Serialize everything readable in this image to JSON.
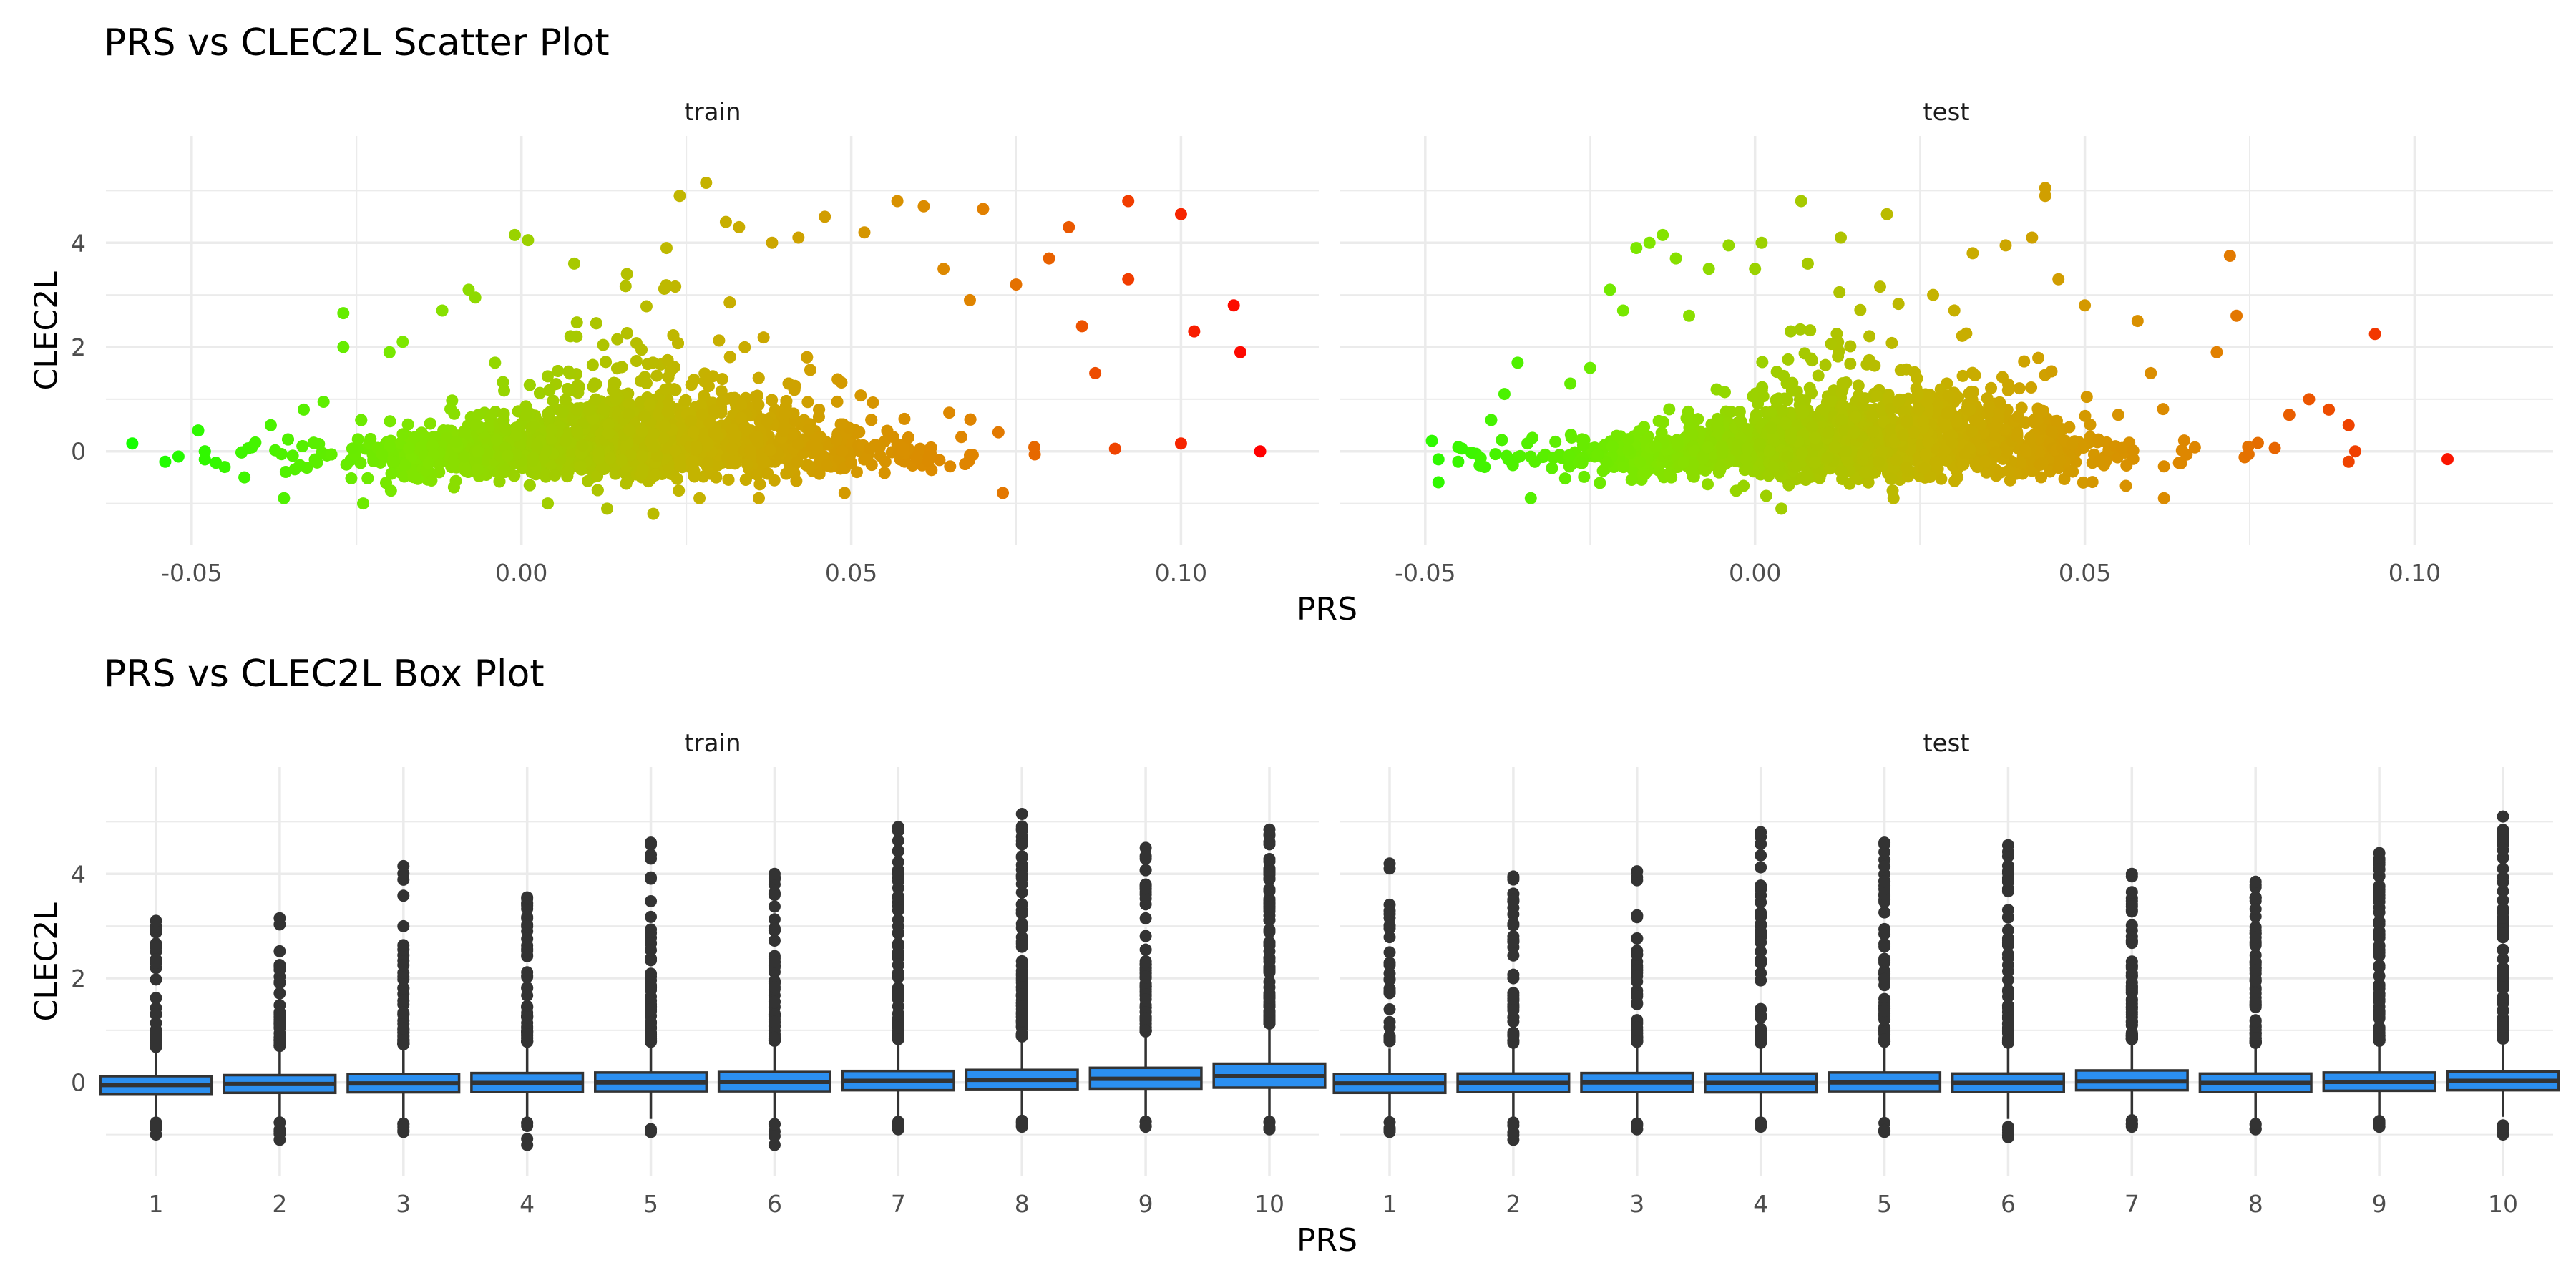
{
  "titles": {
    "scatter": "PRS vs CLEC2L Scatter Plot",
    "box": "PRS vs CLEC2L Box Plot"
  },
  "labels": {
    "x": "PRS",
    "y": "CLEC2L"
  },
  "colors": {
    "grid": "#ebebeb",
    "box_fill": "#2b8ff0",
    "box_line": "#333333",
    "outlier": "#333333",
    "gradient": [
      "#12ff00",
      "#7fe600",
      "#c4b400",
      "#e08300",
      "#ff0000"
    ]
  },
  "chart_data": [
    {
      "type": "scatter",
      "title": "PRS vs CLEC2L Scatter Plot",
      "xlabel": "PRS",
      "ylabel": "CLEC2L",
      "xlim": [
        -0.063,
        0.121
      ],
      "ylim": [
        -1.5,
        5.5
      ],
      "xticks": [
        "-0.05",
        "0.00",
        "0.05",
        "0.10"
      ],
      "xtick_values": [
        -0.05,
        0,
        0.05,
        0.1
      ],
      "yticks": [
        "0",
        "2",
        "4"
      ],
      "ytick_values": [
        0,
        2,
        4
      ],
      "grid": true,
      "color_scale": "PRS value, green (low) to red (high)",
      "panels": [
        {
          "name": "train",
          "points": [
            [
              -0.059,
              0.15
            ],
            [
              -0.054,
              -0.2
            ],
            [
              -0.052,
              -0.1
            ],
            [
              -0.049,
              0.4
            ],
            [
              -0.045,
              -0.3
            ],
            [
              -0.042,
              -0.5
            ],
            [
              -0.038,
              0.5
            ],
            [
              -0.036,
              -0.9
            ],
            [
              -0.033,
              0.8
            ],
            [
              -0.03,
              0.95
            ],
            [
              -0.027,
              2.0
            ],
            [
              -0.027,
              2.65
            ],
            [
              -0.024,
              -1.0
            ],
            [
              -0.02,
              1.9
            ],
            [
              -0.018,
              2.1
            ],
            [
              -0.012,
              2.7
            ],
            [
              -0.008,
              3.1
            ],
            [
              -0.007,
              2.95
            ],
            [
              -0.004,
              1.7
            ],
            [
              -0.001,
              4.15
            ],
            [
              0.001,
              4.05
            ],
            [
              0.004,
              -1.0
            ],
            [
              0.008,
              3.6
            ],
            [
              0.013,
              -1.1
            ],
            [
              0.016,
              3.4
            ],
            [
              0.02,
              -1.2
            ],
            [
              0.022,
              3.9
            ],
            [
              0.024,
              4.9
            ],
            [
              0.027,
              -0.9
            ],
            [
              0.028,
              5.15
            ],
            [
              0.031,
              4.4
            ],
            [
              0.033,
              4.3
            ],
            [
              0.036,
              -0.9
            ],
            [
              0.038,
              4.0
            ],
            [
              0.042,
              4.1
            ],
            [
              0.046,
              4.5
            ],
            [
              0.049,
              -0.8
            ],
            [
              0.052,
              4.2
            ],
            [
              0.057,
              4.8
            ],
            [
              0.061,
              4.7
            ],
            [
              0.064,
              3.5
            ],
            [
              0.068,
              2.9
            ],
            [
              0.07,
              4.65
            ],
            [
              0.073,
              -0.8
            ],
            [
              0.075,
              3.2
            ],
            [
              0.08,
              3.7
            ],
            [
              0.083,
              4.3
            ],
            [
              0.085,
              2.4
            ],
            [
              0.087,
              1.5
            ],
            [
              0.09,
              0.05
            ],
            [
              0.092,
              4.8
            ],
            [
              0.092,
              3.3
            ],
            [
              0.1,
              0.15
            ],
            [
              0.1,
              4.55
            ],
            [
              0.102,
              2.3
            ],
            [
              0.108,
              2.8
            ],
            [
              0.109,
              1.9
            ],
            [
              0.112,
              0.0
            ]
          ],
          "cloud": {
            "mean": 0.015,
            "sd": 0.019,
            "n": 2600
          }
        },
        {
          "name": "test",
          "points": [
            [
              -0.049,
              0.2
            ],
            [
              -0.045,
              -0.2
            ],
            [
              -0.041,
              -0.3
            ],
            [
              -0.04,
              0.6
            ],
            [
              -0.038,
              1.1
            ],
            [
              -0.036,
              1.7
            ],
            [
              -0.034,
              -0.9
            ],
            [
              -0.028,
              1.3
            ],
            [
              -0.025,
              1.6
            ],
            [
              -0.022,
              3.1
            ],
            [
              -0.02,
              2.7
            ],
            [
              -0.018,
              3.9
            ],
            [
              -0.016,
              4.0
            ],
            [
              -0.014,
              4.15
            ],
            [
              -0.012,
              3.7
            ],
            [
              -0.01,
              2.6
            ],
            [
              -0.007,
              3.5
            ],
            [
              -0.004,
              3.95
            ],
            [
              0.0,
              3.5
            ],
            [
              0.001,
              4.0
            ],
            [
              0.004,
              -1.1
            ],
            [
              0.007,
              4.8
            ],
            [
              0.008,
              3.6
            ],
            [
              0.013,
              4.1
            ],
            [
              0.02,
              4.55
            ],
            [
              0.021,
              -0.9
            ],
            [
              0.027,
              3.0
            ],
            [
              0.033,
              3.8
            ],
            [
              0.038,
              3.95
            ],
            [
              0.042,
              4.1
            ],
            [
              0.044,
              4.9
            ],
            [
              0.044,
              5.05
            ],
            [
              0.046,
              3.3
            ],
            [
              0.05,
              2.8
            ],
            [
              0.058,
              2.5
            ],
            [
              0.06,
              1.5
            ],
            [
              0.062,
              -0.9
            ],
            [
              0.07,
              1.9
            ],
            [
              0.072,
              3.75
            ],
            [
              0.073,
              2.6
            ],
            [
              0.081,
              0.7
            ],
            [
              0.084,
              1.0
            ],
            [
              0.087,
              0.8
            ],
            [
              0.09,
              0.5
            ],
            [
              0.091,
              0.0
            ],
            [
              0.09,
              -0.2
            ],
            [
              0.094,
              2.25
            ],
            [
              0.105,
              -0.15
            ]
          ],
          "cloud": {
            "mean": 0.012,
            "sd": 0.019,
            "n": 1800
          }
        }
      ]
    },
    {
      "type": "box",
      "title": "PRS vs CLEC2L Box Plot",
      "xlabel": "PRS",
      "ylabel": "CLEC2L",
      "categories": [
        "1",
        "2",
        "3",
        "4",
        "5",
        "6",
        "7",
        "8",
        "9",
        "10"
      ],
      "ylim": [
        -1.5,
        5.5
      ],
      "yticks": [
        "0",
        "2",
        "4"
      ],
      "ytick_values": [
        0,
        2,
        4
      ],
      "grid": true,
      "panels": [
        {
          "name": "train",
          "boxes": [
            {
              "q1": -0.22,
              "median": -0.05,
              "q3": 0.12,
              "lo": -0.7,
              "hi": 0.6,
              "out_min": -1.0,
              "out_max": 3.1
            },
            {
              "q1": -0.2,
              "median": -0.03,
              "q3": 0.14,
              "lo": -0.7,
              "hi": 0.62,
              "out_min": -1.1,
              "out_max": 3.15
            },
            {
              "q1": -0.19,
              "median": -0.02,
              "q3": 0.16,
              "lo": -0.68,
              "hi": 0.65,
              "out_min": -0.95,
              "out_max": 4.15
            },
            {
              "q1": -0.18,
              "median": -0.01,
              "q3": 0.18,
              "lo": -0.7,
              "hi": 0.7,
              "out_min": -1.2,
              "out_max": 3.55
            },
            {
              "q1": -0.17,
              "median": 0.0,
              "q3": 0.19,
              "lo": -0.7,
              "hi": 0.7,
              "out_min": -0.95,
              "out_max": 4.6
            },
            {
              "q1": -0.17,
              "median": 0.01,
              "q3": 0.2,
              "lo": -0.7,
              "hi": 0.72,
              "out_min": -1.2,
              "out_max": 4.0
            },
            {
              "q1": -0.15,
              "median": 0.03,
              "q3": 0.22,
              "lo": -0.68,
              "hi": 0.75,
              "out_min": -0.9,
              "out_max": 4.9
            },
            {
              "q1": -0.13,
              "median": 0.05,
              "q3": 0.24,
              "lo": -0.67,
              "hi": 0.8,
              "out_min": -0.85,
              "out_max": 5.15
            },
            {
              "q1": -0.12,
              "median": 0.07,
              "q3": 0.28,
              "lo": -0.65,
              "hi": 0.9,
              "out_min": -0.85,
              "out_max": 4.5
            },
            {
              "q1": -0.1,
              "median": 0.12,
              "q3": 0.36,
              "lo": -0.65,
              "hi": 1.05,
              "out_min": -0.9,
              "out_max": 4.85
            }
          ]
        },
        {
          "name": "test",
          "boxes": [
            {
              "q1": -0.2,
              "median": -0.02,
              "q3": 0.16,
              "lo": -0.68,
              "hi": 0.65,
              "out_min": -0.95,
              "out_max": 4.2
            },
            {
              "q1": -0.18,
              "median": -0.01,
              "q3": 0.17,
              "lo": -0.7,
              "hi": 0.68,
              "out_min": -1.1,
              "out_max": 3.95
            },
            {
              "q1": -0.18,
              "median": 0.0,
              "q3": 0.18,
              "lo": -0.68,
              "hi": 0.7,
              "out_min": -0.9,
              "out_max": 4.05
            },
            {
              "q1": -0.19,
              "median": -0.01,
              "q3": 0.17,
              "lo": -0.7,
              "hi": 0.68,
              "out_min": -0.85,
              "out_max": 4.8
            },
            {
              "q1": -0.17,
              "median": 0.0,
              "q3": 0.19,
              "lo": -0.7,
              "hi": 0.7,
              "out_min": -0.95,
              "out_max": 4.6
            },
            {
              "q1": -0.18,
              "median": -0.01,
              "q3": 0.17,
              "lo": -0.7,
              "hi": 0.68,
              "out_min": -1.05,
              "out_max": 4.55
            },
            {
              "q1": -0.15,
              "median": 0.02,
              "q3": 0.23,
              "lo": -0.66,
              "hi": 0.75,
              "out_min": -0.85,
              "out_max": 4.0
            },
            {
              "q1": -0.18,
              "median": -0.01,
              "q3": 0.17,
              "lo": -0.7,
              "hi": 0.68,
              "out_min": -0.9,
              "out_max": 3.85
            },
            {
              "q1": -0.16,
              "median": 0.01,
              "q3": 0.19,
              "lo": -0.68,
              "hi": 0.72,
              "out_min": -0.85,
              "out_max": 4.4
            },
            {
              "q1": -0.15,
              "median": 0.03,
              "q3": 0.21,
              "lo": -0.66,
              "hi": 0.76,
              "out_min": -1.0,
              "out_max": 5.1
            }
          ]
        }
      ]
    }
  ]
}
